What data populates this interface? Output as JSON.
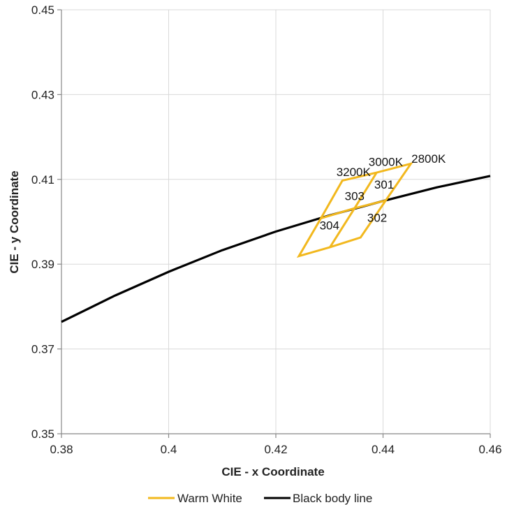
{
  "chart_data": {
    "type": "line",
    "xlabel": "CIE - x Coordinate",
    "ylabel": "CIE - y Coordinate",
    "xlim": [
      0.38,
      0.46
    ],
    "ylim": [
      0.35,
      0.45
    ],
    "x_ticks": [
      "0.38",
      "0.4",
      "0.42",
      "0.44",
      "0.46"
    ],
    "y_ticks": [
      "0.35",
      "0.37",
      "0.39",
      "0.41",
      "0.43",
      "0.45"
    ],
    "x_tick_values": [
      0.38,
      0.4,
      0.42,
      0.44,
      0.46
    ],
    "y_tick_values": [
      0.35,
      0.37,
      0.39,
      0.41,
      0.43,
      0.45
    ],
    "grid": true,
    "legend_position": "bottom",
    "series": [
      {
        "name": "Warm White",
        "color": "#F2B81E",
        "polygons": [
          [
            [
              0.4324,
              0.4097
            ],
            [
              0.4388,
              0.4116
            ],
            [
              0.4452,
              0.4137
            ],
            [
              0.4405,
              0.405
            ],
            [
              0.4358,
              0.3963
            ],
            [
              0.4301,
              0.394
            ],
            [
              0.4243,
              0.3919
            ],
            [
              0.4284,
              0.4008
            ]
          ],
          [
            [
              0.4388,
              0.4116
            ],
            [
              0.4347,
              0.4032
            ],
            [
              0.4301,
              0.394
            ]
          ],
          [
            [
              0.4284,
              0.4008
            ],
            [
              0.4347,
              0.4032
            ],
            [
              0.4405,
              0.405
            ]
          ]
        ]
      },
      {
        "name": "Black body line",
        "color": "#000000",
        "x": [
          0.38,
          0.39,
          0.4,
          0.41,
          0.42,
          0.43,
          0.44,
          0.45,
          0.46
        ],
        "y": [
          0.3764,
          0.3826,
          0.3882,
          0.3933,
          0.3977,
          0.4015,
          0.4049,
          0.4081,
          0.4108
        ]
      }
    ],
    "annotations": [
      {
        "text": "3200K",
        "x": 0.4345,
        "y": 0.4118
      },
      {
        "text": "3000K",
        "x": 0.4405,
        "y": 0.4142
      },
      {
        "text": "2800K",
        "x": 0.4485,
        "y": 0.4149
      },
      {
        "text": "301",
        "x": 0.4402,
        "y": 0.4088
      },
      {
        "text": "303",
        "x": 0.4347,
        "y": 0.4061
      },
      {
        "text": "302",
        "x": 0.4389,
        "y": 0.401
      },
      {
        "text": "304",
        "x": 0.43,
        "y": 0.3992
      }
    ]
  }
}
